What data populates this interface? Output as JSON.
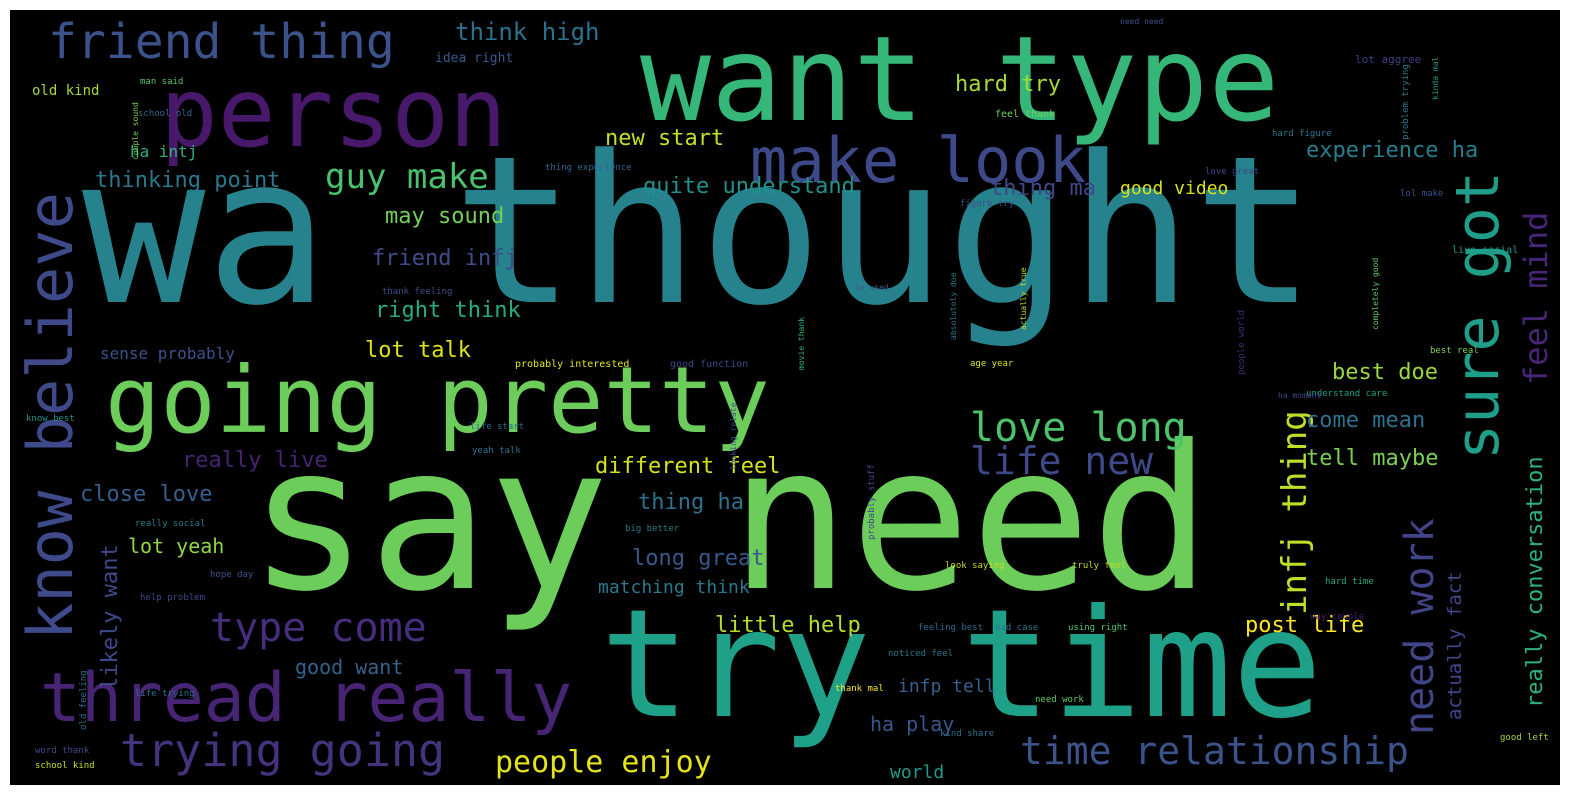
{
  "cloud": {
    "background": "#000000",
    "words": [
      {
        "id": "w_wa_thought",
        "text": "wa thought",
        "color": "#26838e"
      },
      {
        "id": "w_say_need",
        "text": "say need",
        "color": "#6ccd5a"
      },
      {
        "id": "w_try_time",
        "text": "try time",
        "color": "#1fa088"
      },
      {
        "id": "w_want_type",
        "text": "want type",
        "color": "#35b779"
      },
      {
        "id": "w_person",
        "text": "person",
        "color": "#48186a"
      },
      {
        "id": "w_going_pretty",
        "text": "going pretty",
        "color": "#6ccd5a"
      },
      {
        "id": "w_know_believe",
        "text": "know believe",
        "color": "#3e4a89"
      },
      {
        "id": "w_thread_really",
        "text": "thread really",
        "color": "#482475"
      },
      {
        "id": "w_make_look",
        "text": "make look",
        "color": "#3e4989"
      },
      {
        "id": "w_friend_thing",
        "text": "friend thing",
        "color": "#3b528b"
      },
      {
        "id": "w_sure_got",
        "text": "sure got",
        "color": "#1f9e89"
      },
      {
        "id": "w_trying_going",
        "text": "trying going",
        "color": "#46337e"
      },
      {
        "id": "w_time_relationship",
        "text": "time relationship",
        "color": "#3b528b"
      },
      {
        "id": "w_type_come",
        "text": "type come",
        "color": "#472d7b"
      },
      {
        "id": "w_love_long",
        "text": "love long",
        "color": "#4ec36b"
      },
      {
        "id": "w_life_new",
        "text": "life new",
        "color": "#3e4989"
      },
      {
        "id": "w_infj_thing",
        "text": "infj thing",
        "color": "#bddf26"
      },
      {
        "id": "w_need_work",
        "text": "need work",
        "color": "#414487"
      },
      {
        "id": "w_feel_mind",
        "text": "feel mind",
        "color": "#482677"
      },
      {
        "id": "w_guy_make",
        "text": "guy make",
        "color": "#4ac16d"
      },
      {
        "id": "w_people_enjoy",
        "text": "people enjoy",
        "color": "#e5e419"
      },
      {
        "id": "w_really_conversation",
        "text": "really conversation",
        "color": "#2db27d"
      },
      {
        "id": "w_think_high",
        "text": "think high",
        "color": "#2c728e"
      },
      {
        "id": "w_hard_try",
        "text": "hard try",
        "color": "#a5db36"
      },
      {
        "id": "w_new_start",
        "text": "new start",
        "color": "#c2df23"
      },
      {
        "id": "w_experience_ha",
        "text": "experience ha",
        "color": "#277f8e"
      },
      {
        "id": "w_thinking_point",
        "text": "thinking point",
        "color": "#2a788e"
      },
      {
        "id": "w_quite_understand",
        "text": "quite understand",
        "color": "#21918c"
      },
      {
        "id": "w_thing_ma",
        "text": "thing ma",
        "color": "#404688"
      },
      {
        "id": "w_good_video",
        "text": "good video",
        "color": "#d8e219"
      },
      {
        "id": "w_may_sound",
        "text": "may sound",
        "color": "#73d056"
      },
      {
        "id": "w_friend_infj",
        "text": "friend infj",
        "color": "#3e4c8a"
      },
      {
        "id": "w_right_think",
        "text": "right think",
        "color": "#25ac82"
      },
      {
        "id": "w_lot_talk",
        "text": "lot talk",
        "color": "#dde318"
      },
      {
        "id": "w_sense_probably",
        "text": "sense probably",
        "color": "#3b528b"
      },
      {
        "id": "w_best_doe",
        "text": "best doe",
        "color": "#9bd93c"
      },
      {
        "id": "w_come_mean",
        "text": "come mean",
        "color": "#2c728e"
      },
      {
        "id": "w_tell_maybe",
        "text": "tell maybe",
        "color": "#7ad151"
      },
      {
        "id": "w_really_live",
        "text": "really live",
        "color": "#482374"
      },
      {
        "id": "w_different_feel",
        "text": "different feel",
        "color": "#d5e21a"
      },
      {
        "id": "w_close_love",
        "text": "close love",
        "color": "#35608d"
      },
      {
        "id": "w_thing_ha",
        "text": "thing ha",
        "color": "#2c728e"
      },
      {
        "id": "w_likely_want",
        "text": "likely want",
        "color": "#90d743"
      },
      {
        "id": "w_lot_yeah",
        "text": "lot yeah",
        "color": "#38588c"
      },
      {
        "id": "w_long_great",
        "text": "long great",
        "color": "#3e4989"
      },
      {
        "id": "w_matching_think",
        "text": "matching think",
        "color": "#2a788e"
      },
      {
        "id": "w_actually_fact",
        "text": "actually fact",
        "color": "#3f4889"
      },
      {
        "id": "w_little_help",
        "text": "little help",
        "color": "#b5de2b"
      },
      {
        "id": "w_post_life",
        "text": "post life",
        "color": "#fde725"
      },
      {
        "id": "w_ha_play",
        "text": "ha play",
        "color": "#39568c"
      },
      {
        "id": "w_good_want",
        "text": "good want",
        "color": "#33638d"
      },
      {
        "id": "w_infp_tell",
        "text": "infp tell",
        "color": "#34618d"
      },
      {
        "id": "w_world",
        "text": "world",
        "color": "#1e9c89"
      },
      {
        "id": "w_idea_right",
        "text": "idea right",
        "color": "#38598c"
      },
      {
        "id": "w_old_kind",
        "text": "old kind",
        "color": "#a2da37"
      },
      {
        "id": "w_ha_intj",
        "text": "ha intj",
        "color": "#2db27d"
      },
      {
        "id": "w_school_old",
        "text": "school old",
        "color": "#31688e"
      },
      {
        "id": "w_man_said",
        "text": "man said",
        "color": "#5cc863"
      },
      {
        "id": "w_feel_thank",
        "text": "feel thank",
        "color": "#6ece58"
      },
      {
        "id": "w_lot_aggree",
        "text": "lot aggree",
        "color": "#433e85"
      },
      {
        "id": "w_hard_figure",
        "text": "hard figure",
        "color": "#2a788e"
      },
      {
        "id": "w_problem_trying",
        "text": "problem trying",
        "color": "#2a788e"
      },
      {
        "id": "w_love_great",
        "text": "love great",
        "color": "#414487"
      },
      {
        "id": "w_lol_make",
        "text": "lol make",
        "color": "#3b528b"
      },
      {
        "id": "w_live_social",
        "text": "live social",
        "color": "#1f9a8a"
      },
      {
        "id": "w_best_real",
        "text": "best real",
        "color": "#7fd34e"
      },
      {
        "id": "w_understand_care",
        "text": "understand care",
        "color": "#1fa187"
      },
      {
        "id": "w_age_year",
        "text": "age year",
        "color": "#dae319"
      },
      {
        "id": "w_ha_moment",
        "text": "ha moment",
        "color": "#3e4989"
      },
      {
        "id": "w_life_start",
        "text": "life start",
        "color": "#2f6c8e"
      },
      {
        "id": "w_yeah_talk",
        "text": "yeah talk",
        "color": "#2c738e"
      },
      {
        "id": "w_probably_interested",
        "text": "probably interested",
        "color": "#e2e418"
      },
      {
        "id": "w_good_function",
        "text": "good function",
        "color": "#3f4788"
      },
      {
        "id": "w_people_world",
        "text": "people world",
        "color": "#482878"
      },
      {
        "id": "w_big_better",
        "text": "big better",
        "color": "#29798e"
      },
      {
        "id": "w_look_saying",
        "text": "look saying",
        "color": "#c0df25"
      },
      {
        "id": "w_truly_feel",
        "text": "truly feel",
        "color": "#b8de29"
      },
      {
        "id": "w_hard_time",
        "text": "hard time",
        "color": "#27ad81"
      },
      {
        "id": "w_way_couple",
        "text": "way couple",
        "color": "#481d6f"
      },
      {
        "id": "w_feeling_best",
        "text": "feeling best",
        "color": "#30698e"
      },
      {
        "id": "w_bad_case",
        "text": "bad case",
        "color": "#2a768e"
      },
      {
        "id": "w_using_right",
        "text": "using right",
        "color": "#4fc46a"
      },
      {
        "id": "w_noticed_feel",
        "text": "noticed feel",
        "color": "#2b758e"
      },
      {
        "id": "w_thank_mal",
        "text": "thank mal",
        "color": "#fde725"
      },
      {
        "id": "w_need_work_small",
        "text": "need work",
        "color": "#63cb5f"
      },
      {
        "id": "w_kind_share",
        "text": "kind share",
        "color": "#2b748e"
      },
      {
        "id": "w_good_left",
        "text": "good left",
        "color": "#a8db34"
      },
      {
        "id": "w_school_kind",
        "text": "school kind",
        "color": "#c5e021"
      },
      {
        "id": "w_word_thank",
        "text": "word thank",
        "color": "#3d4d8a"
      },
      {
        "id": "w_help_problem",
        "text": "help problem",
        "color": "#3f4889"
      },
      {
        "id": "w_hope_day",
        "text": "hope day",
        "color": "#39558c"
      },
      {
        "id": "w_really_social",
        "text": "really social",
        "color": "#287c8e"
      },
      {
        "id": "w_old_feeling",
        "text": "old feeling",
        "color": "#2e6f8e"
      },
      {
        "id": "w_life_trying",
        "text": "life trying",
        "color": "#2d708e"
      },
      {
        "id": "w_know_best",
        "text": "know best",
        "color": "#1f948c"
      },
      {
        "id": "w_thank_feeling",
        "text": "thank feeling",
        "color": "#3d4d8a"
      },
      {
        "id": "w_ie_used",
        "text": "ie used",
        "color": "#38598c"
      },
      {
        "id": "w_figure_try",
        "text": "figure try",
        "color": "#3d4d8a"
      },
      {
        "id": "w_thing_experience",
        "text": "thing experience",
        "color": "#31688e"
      },
      {
        "id": "w_need_need",
        "text": "need need",
        "color": "#3a538b"
      },
      {
        "id": "w_couple_sound",
        "text": "couple sound",
        "color": "#7ad151"
      },
      {
        "id": "w_kinda_mal",
        "text": "kinda mal",
        "color": "#1e9b8a"
      },
      {
        "id": "w_probably_stuff",
        "text": "probably stuff",
        "color": "#414487"
      },
      {
        "id": "w_actually_true",
        "text": "actually true",
        "color": "#c0df25"
      },
      {
        "id": "w_absolutely_doe",
        "text": "absolutely doe",
        "color": "#2a778e"
      },
      {
        "id": "w_completely_good",
        "text": "completely good",
        "color": "#5ec962"
      },
      {
        "id": "w_movie_thank",
        "text": "movie thank",
        "color": "#31b57b"
      },
      {
        "id": "w_looking_relate",
        "text": "looking relate",
        "color": "#3b528b"
      }
    ]
  }
}
